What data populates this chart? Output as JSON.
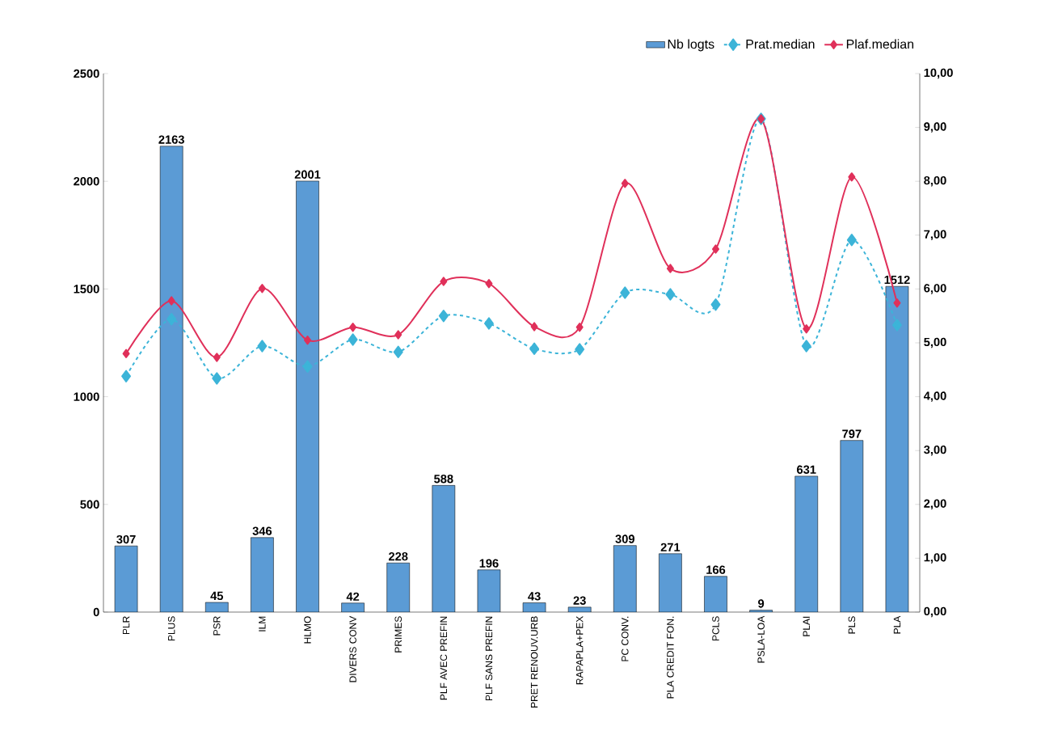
{
  "chart_data": {
    "type": "bar",
    "categories": [
      "PLR",
      "PLUS",
      "PSR",
      "ILM",
      "HLMO",
      "DIVERS CONV",
      "PRIMES",
      "PLF AVEC PREFIN",
      "PLF SANS PREFIN",
      "PRET RENOUV.URB",
      "RAPAPLA+PEX",
      "PC CONV.",
      "PLA CREDIT FON.",
      "PCLS",
      "PSLA-LOA",
      "PLAI",
      "PLS",
      "PLA"
    ],
    "series": [
      {
        "name": "Nb logts",
        "color": "#5b9bd5",
        "values": [
          307,
          2163,
          45,
          346,
          2001,
          42,
          228,
          588,
          196,
          43,
          23,
          309,
          271,
          166,
          9,
          631,
          797,
          1512
        ],
        "value_labels": [
          "307",
          "2163",
          "45",
          "346",
          "2001",
          "42",
          "228",
          "588",
          "196",
          "43",
          "23",
          "309",
          "271",
          "166",
          "9",
          "631",
          "797",
          "1512"
        ]
      },
      {
        "name": "Prat.median",
        "type": "line",
        "axis": "y2",
        "color": "#3cb4d8",
        "marker": "diamond",
        "line_style": "dashed",
        "values": [
          4.38,
          5.44,
          4.34,
          4.94,
          4.56,
          5.06,
          4.83,
          5.5,
          5.36,
          4.89,
          4.88,
          5.93,
          5.9,
          5.71,
          9.16,
          4.94,
          6.91,
          5.33
        ]
      },
      {
        "name": "Plaf.median",
        "type": "line",
        "axis": "y2",
        "color": "#e0305a",
        "marker": "diamond",
        "line_style": "solid",
        "values": [
          4.8,
          5.78,
          4.73,
          6.01,
          5.05,
          5.29,
          5.15,
          6.14,
          6.1,
          5.3,
          5.29,
          7.96,
          6.38,
          6.74,
          9.16,
          5.26,
          8.08,
          5.74
        ]
      }
    ],
    "ylim": [
      0,
      2500
    ],
    "yticks": [
      0,
      500,
      1000,
      1500,
      2000,
      2500
    ],
    "y2lim": [
      0,
      10
    ],
    "y2ticks": [
      {
        "value": 0,
        "label": "0,00"
      },
      {
        "value": 1,
        "label": "1,00"
      },
      {
        "value": 2,
        "label": "2,00"
      },
      {
        "value": 3,
        "label": "3,00"
      },
      {
        "value": 4,
        "label": "4,00"
      },
      {
        "value": 5,
        "label": "5,00"
      },
      {
        "value": 6,
        "label": "6,00"
      },
      {
        "value": 7,
        "label": "7,00"
      },
      {
        "value": 8,
        "label": "8,00"
      },
      {
        "value": 9,
        "label": "9,00"
      },
      {
        "value": 10,
        "label": "10,00"
      }
    ],
    "legend": "top right"
  }
}
